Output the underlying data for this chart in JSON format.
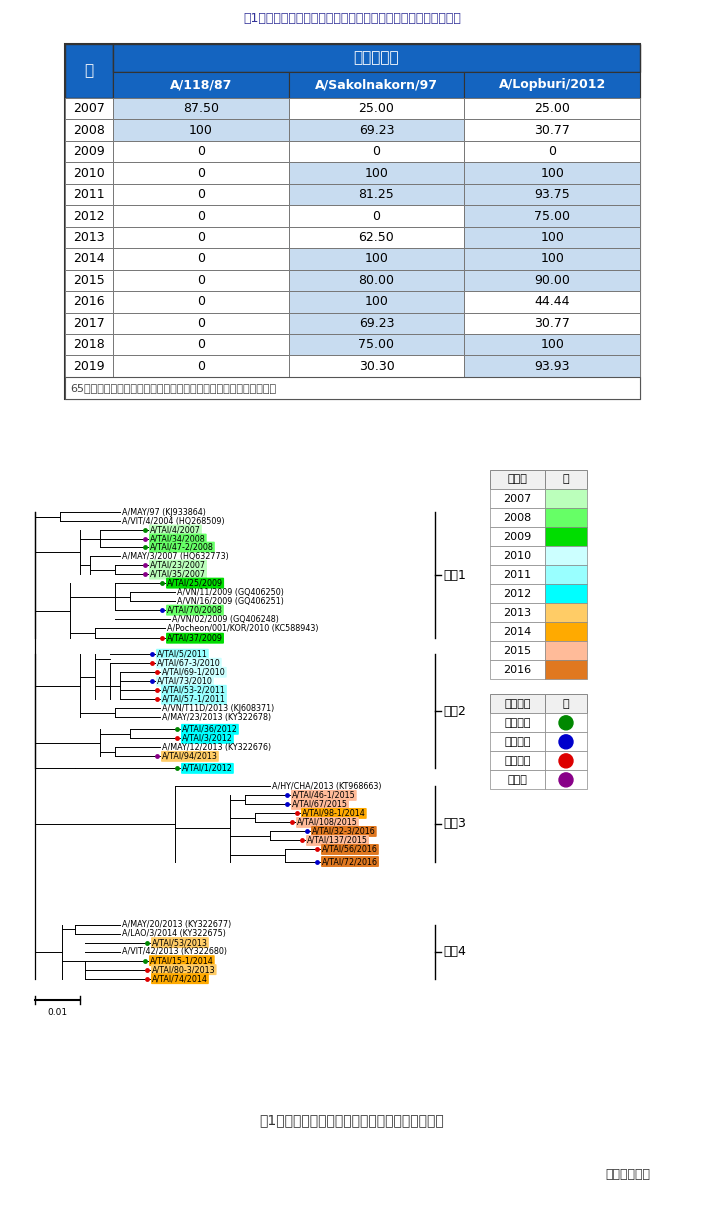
{
  "table_title": "表1　ワクチン株免疫牛血清と反応したウイルス株の割合（％）",
  "table_note": "65％以上の分離株がワクチン株と反応した部分を水色で着色した。",
  "col_header_main": "ワクチン株",
  "col_year": "年",
  "col_headers": [
    "A/118/87",
    "A/Sakolnakorn/97",
    "A/Lopburi/2012"
  ],
  "rows": [
    {
      "year": "2007",
      "vals": [
        "87.50",
        "25.00",
        "25.00"
      ],
      "highlight": [
        true,
        false,
        false
      ]
    },
    {
      "year": "2008",
      "vals": [
        "100",
        "69.23",
        "30.77"
      ],
      "highlight": [
        true,
        true,
        false
      ]
    },
    {
      "year": "2009",
      "vals": [
        "0",
        "0",
        "0"
      ],
      "highlight": [
        false,
        false,
        false
      ]
    },
    {
      "year": "2010",
      "vals": [
        "0",
        "100",
        "100"
      ],
      "highlight": [
        false,
        true,
        true
      ]
    },
    {
      "year": "2011",
      "vals": [
        "0",
        "81.25",
        "93.75"
      ],
      "highlight": [
        false,
        true,
        true
      ]
    },
    {
      "year": "2012",
      "vals": [
        "0",
        "0",
        "75.00"
      ],
      "highlight": [
        false,
        false,
        true
      ]
    },
    {
      "year": "2013",
      "vals": [
        "0",
        "62.50",
        "100"
      ],
      "highlight": [
        false,
        false,
        true
      ]
    },
    {
      "year": "2014",
      "vals": [
        "0",
        "100",
        "100"
      ],
      "highlight": [
        false,
        true,
        true
      ]
    },
    {
      "year": "2015",
      "vals": [
        "0",
        "80.00",
        "90.00"
      ],
      "highlight": [
        false,
        true,
        true
      ]
    },
    {
      "year": "2016",
      "vals": [
        "0",
        "100",
        "44.44"
      ],
      "highlight": [
        false,
        true,
        false
      ]
    },
    {
      "year": "2017",
      "vals": [
        "0",
        "69.23",
        "30.77"
      ],
      "highlight": [
        false,
        true,
        false
      ]
    },
    {
      "year": "2018",
      "vals": [
        "0",
        "75.00",
        "100"
      ],
      "highlight": [
        false,
        true,
        true
      ]
    },
    {
      "year": "2019",
      "vals": [
        "0",
        "30.30",
        "93.93"
      ],
      "highlight": [
        false,
        false,
        true
      ]
    }
  ],
  "header_bg": "#1464C0",
  "header_text": "#FFFFFF",
  "highlight_color": "#C8DCF0",
  "fig2_title": "図1　分離ウイルス株の全長ゲノム配列の系統樹",
  "author": "（深井克彦）",
  "year_colors": {
    "2007": "#BBFFBB",
    "2008": "#66FF66",
    "2009": "#00DD00",
    "2010": "#CCFFFF",
    "2011": "#99FFFF",
    "2012": "#00FFFF",
    "2013": "#FFCC66",
    "2014": "#FFAA00",
    "2015": "#FFBB99",
    "2016": "#E07820"
  },
  "region_colors": {
    "NE": "#008800",
    "NW": "#0000CC",
    "C": "#DD0000",
    "S": "#880088"
  },
  "region_labels": {
    "NE": "北東地域",
    "NW": "北西地域",
    "C": "中央地域",
    "S": "南地域"
  }
}
